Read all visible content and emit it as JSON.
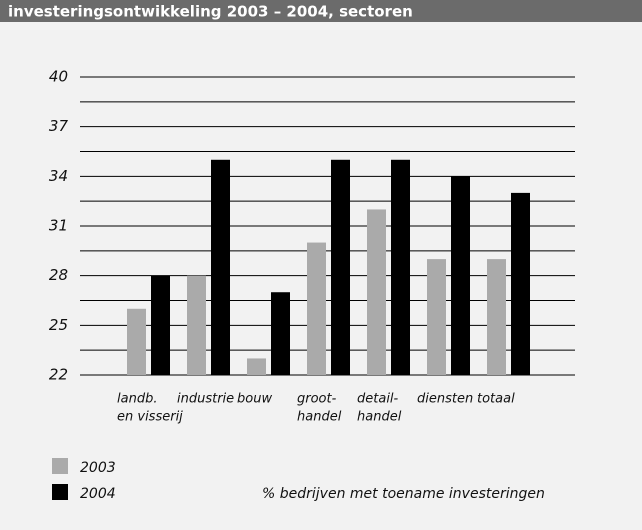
{
  "chart_data": {
    "type": "bar",
    "title": "investeringsontwikkeling 2003 – 2004, sectoren",
    "categories": [
      [
        "landb.",
        "en visserij"
      ],
      [
        "industrie"
      ],
      [
        "bouw"
      ],
      [
        "groot-",
        "handel"
      ],
      [
        "detail-",
        "handel"
      ],
      [
        "diensten"
      ],
      [
        "totaal"
      ]
    ],
    "series": [
      {
        "name": "2003",
        "color": "#aaaaaa",
        "values": [
          26,
          28,
          23,
          30,
          32,
          29,
          29
        ]
      },
      {
        "name": "2004",
        "color": "#000000",
        "values": [
          28,
          35,
          27,
          35,
          35,
          34,
          33
        ]
      }
    ],
    "ylim": [
      22,
      40
    ],
    "yticks": [
      22,
      25,
      28,
      31,
      34,
      37,
      40
    ],
    "minor_yticks": [
      23.5,
      26.5,
      29.5,
      32.5,
      35.5,
      38.5
    ],
    "grid": true,
    "note": "% bedrijven met toename investeringen"
  }
}
